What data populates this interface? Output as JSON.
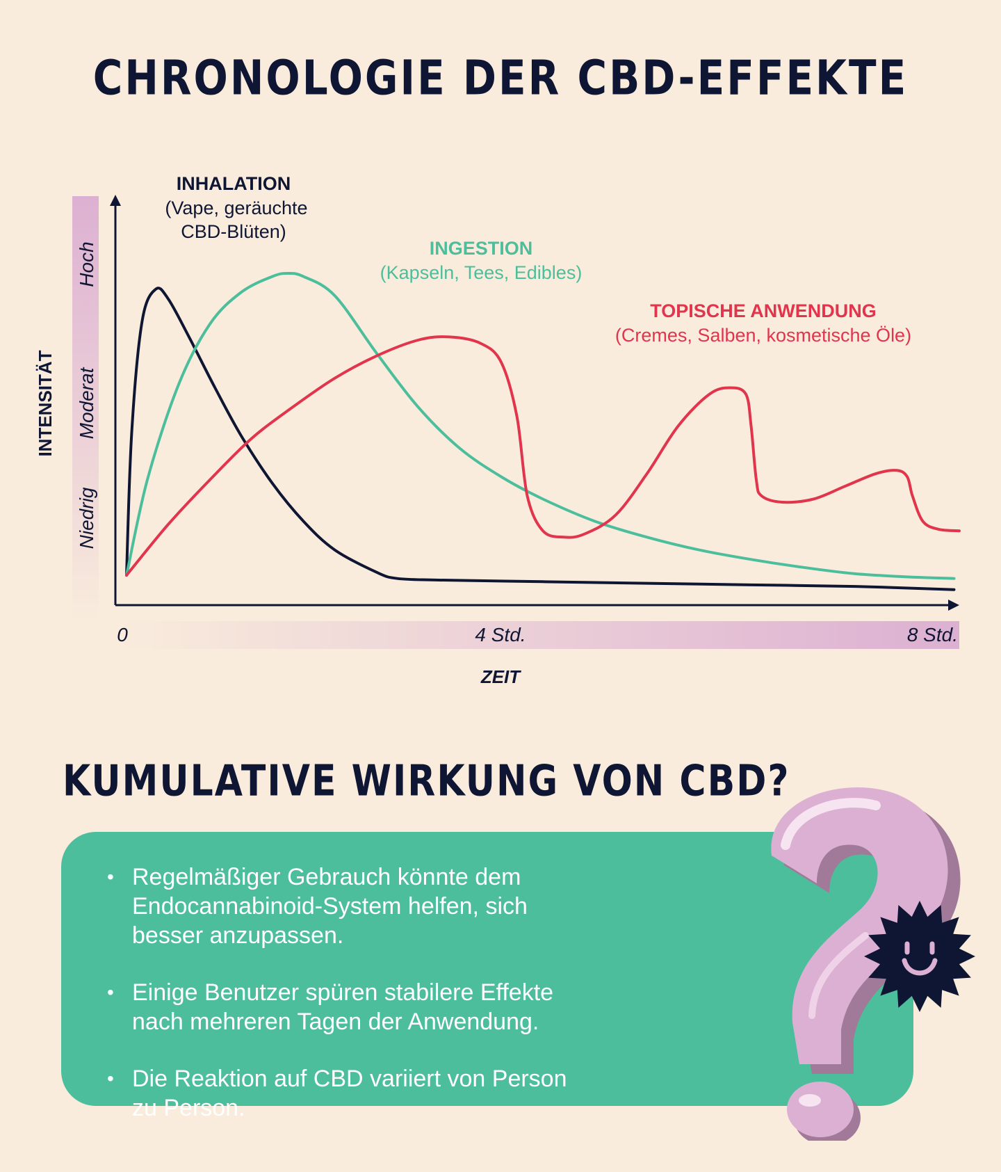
{
  "title": "CHRONOLOGIE DER CBD-EFFEKTE",
  "colors": {
    "background": "#f9ecdc",
    "dark": "#0f1633",
    "green": "#4cbe9c",
    "red": "#e1344d",
    "pink": "#dcb0d2"
  },
  "chart_data": {
    "type": "line",
    "xlabel": "ZEIT",
    "ylabel": "INTENSITÄT",
    "x_ticks": [
      "0",
      "4 Std.",
      "8 Std."
    ],
    "y_levels": [
      "Niedrig",
      "Moderat",
      "Hoch"
    ],
    "xlim": [
      0,
      8
    ],
    "ylim": [
      0,
      1
    ],
    "series": [
      {
        "name": "INHALATION",
        "sublabel": "(Vape, geräuchte CBD-Blüten)",
        "color": "#0f1633",
        "x": [
          0.0,
          0.05,
          0.15,
          0.28,
          0.4,
          0.6,
          0.85,
          1.1,
          1.4,
          1.7,
          2.0,
          2.4,
          2.6,
          3.0,
          4.0,
          5.0,
          6.0,
          7.0,
          7.95
        ],
        "y": [
          0.05,
          0.5,
          0.85,
          0.95,
          0.92,
          0.8,
          0.64,
          0.49,
          0.34,
          0.22,
          0.13,
          0.06,
          0.04,
          0.035,
          0.03,
          0.025,
          0.02,
          0.015,
          0.005
        ]
      },
      {
        "name": "INGESTION",
        "sublabel": "(Kapseln, Tees, Edibles)",
        "color": "#4cbe9c",
        "x": [
          0.0,
          0.2,
          0.5,
          0.8,
          1.1,
          1.4,
          1.55,
          1.7,
          2.0,
          2.4,
          2.8,
          3.2,
          3.6,
          4.0,
          4.5,
          5.0,
          5.5,
          6.0,
          6.5,
          7.0,
          7.5,
          7.95
        ],
        "y": [
          0.05,
          0.35,
          0.65,
          0.84,
          0.94,
          0.99,
          1.0,
          0.99,
          0.93,
          0.75,
          0.58,
          0.45,
          0.36,
          0.29,
          0.22,
          0.17,
          0.13,
          0.1,
          0.075,
          0.055,
          0.045,
          0.04
        ]
      },
      {
        "name": "TOPISCHE ANWENDUNG",
        "sublabel": "(Cremes, Salben, kosmetische Öle)",
        "color": "#e1344d",
        "x": [
          0.0,
          0.4,
          0.8,
          1.2,
          1.6,
          2.0,
          2.4,
          2.8,
          3.1,
          3.4,
          3.6,
          3.75,
          3.85,
          4.0,
          4.2,
          4.4,
          4.7,
          5.0,
          5.3,
          5.6,
          5.8,
          5.95,
          6.0,
          6.05,
          6.1,
          6.3,
          6.6,
          6.9,
          7.2,
          7.4,
          7.5,
          7.55,
          7.65,
          7.8,
          8.0
        ],
        "y": [
          0.05,
          0.21,
          0.35,
          0.48,
          0.58,
          0.67,
          0.74,
          0.79,
          0.8,
          0.78,
          0.72,
          0.55,
          0.3,
          0.19,
          0.17,
          0.18,
          0.24,
          0.37,
          0.52,
          0.62,
          0.64,
          0.62,
          0.52,
          0.35,
          0.3,
          0.28,
          0.29,
          0.33,
          0.37,
          0.38,
          0.36,
          0.3,
          0.22,
          0.195,
          0.19
        ]
      }
    ]
  },
  "section": {
    "title": "KUMULATIVE WIRKUNG VON CBD?",
    "bullets": [
      "Regelmäßiger Gebrauch könnte dem Endocannabinoid-System helfen, sich besser anzupassen.",
      "Einige Benutzer spüren stabilere Effekte nach mehreren Tagen der Anwendung.",
      "Die Reaktion auf CBD variiert von Person zu Person."
    ]
  },
  "icons": {
    "decoration": "question-mark-icon",
    "mascot": "smiley-sun-icon"
  }
}
